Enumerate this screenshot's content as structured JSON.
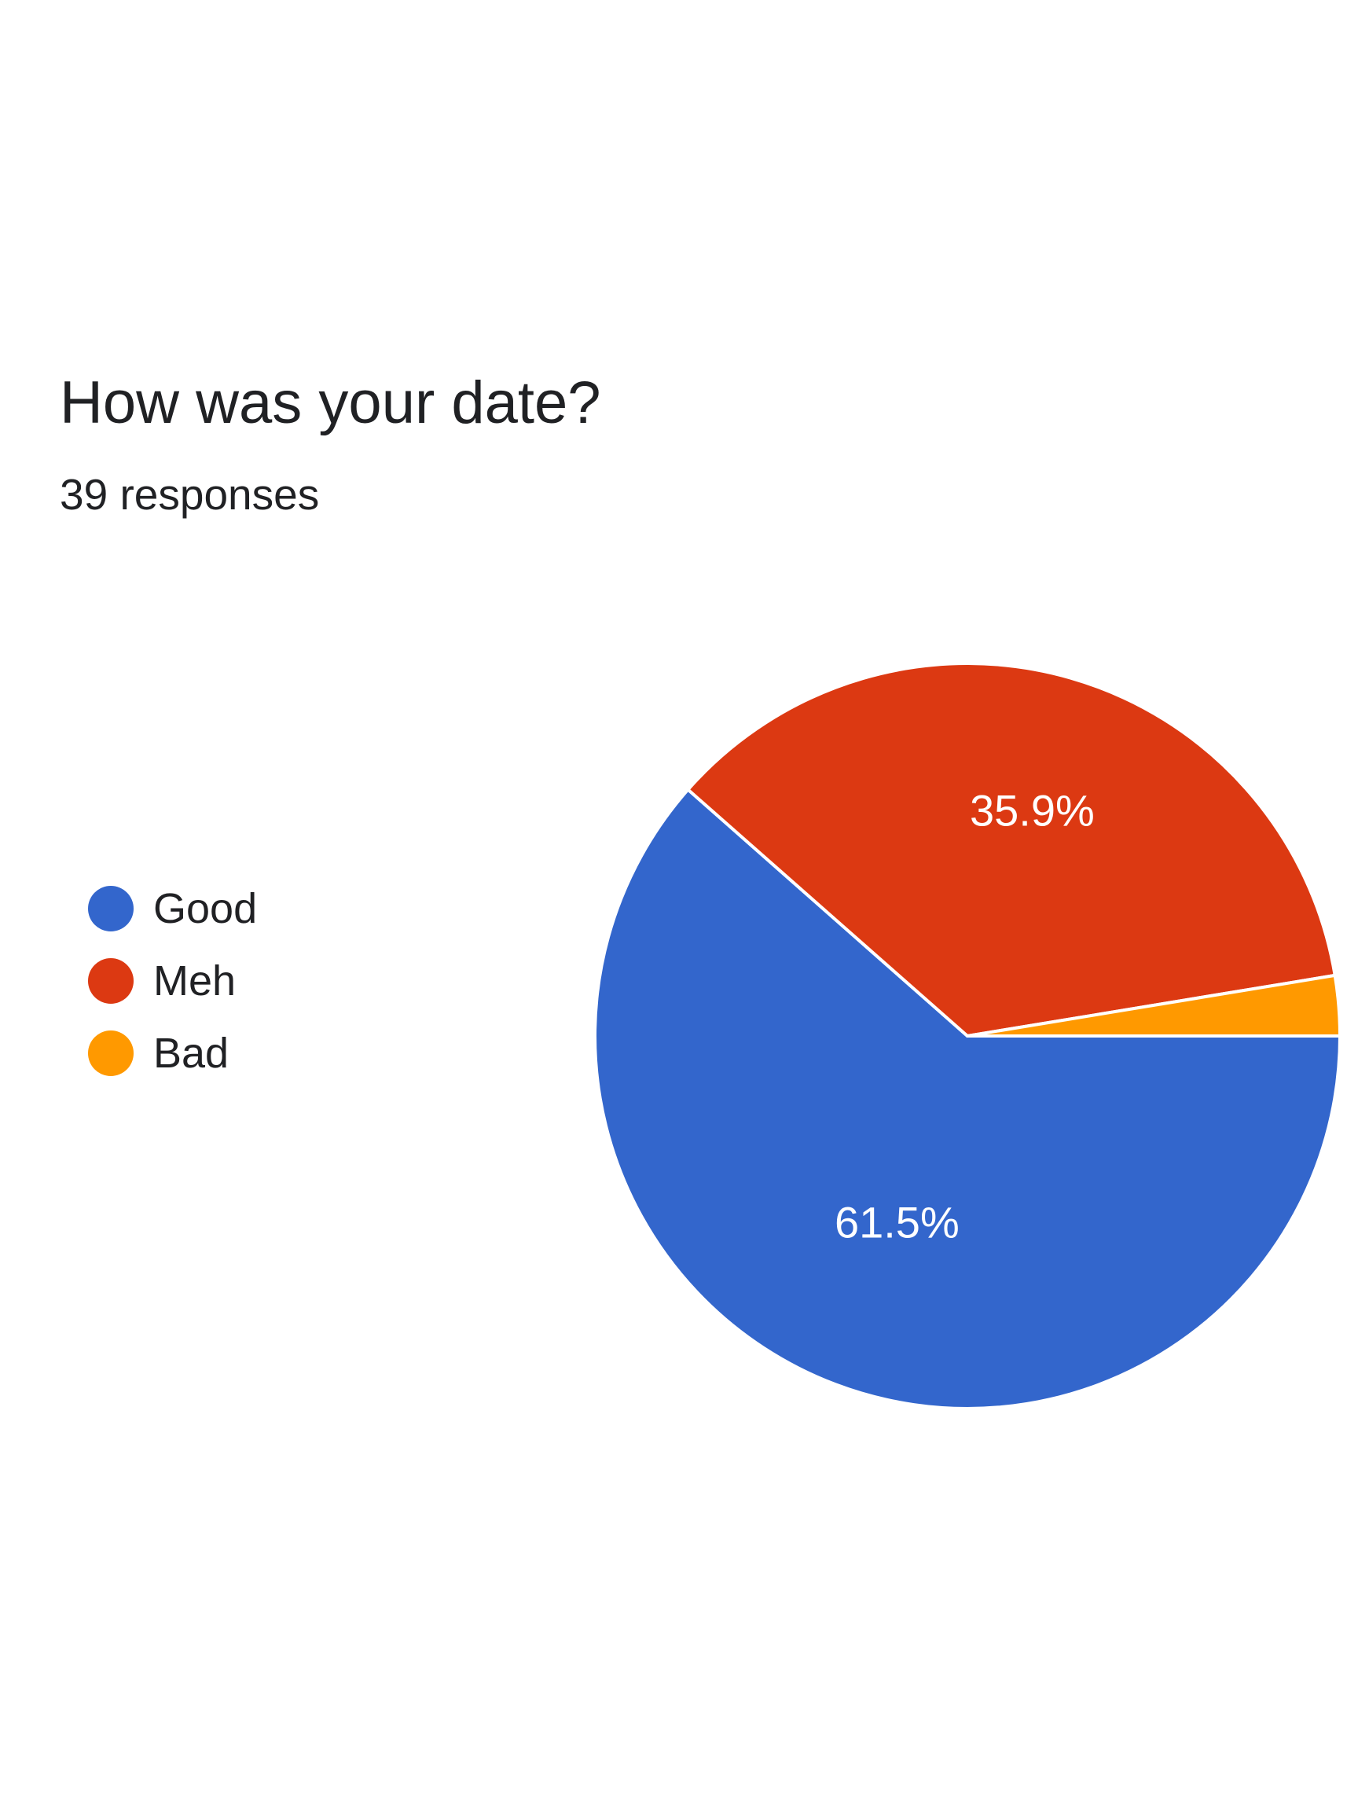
{
  "chart_data": {
    "type": "pie",
    "title": "How was your date?",
    "subtitle": "39 responses",
    "legend_position": "left",
    "total_responses": 39,
    "categories": [
      "Good",
      "Meh",
      "Bad"
    ],
    "values": [
      61.5,
      35.9,
      2.6
    ],
    "labels": [
      "61.5%",
      "35.9%",
      ""
    ],
    "colors": [
      "#3366cc",
      "#dc3912",
      "#ff9900"
    ]
  }
}
